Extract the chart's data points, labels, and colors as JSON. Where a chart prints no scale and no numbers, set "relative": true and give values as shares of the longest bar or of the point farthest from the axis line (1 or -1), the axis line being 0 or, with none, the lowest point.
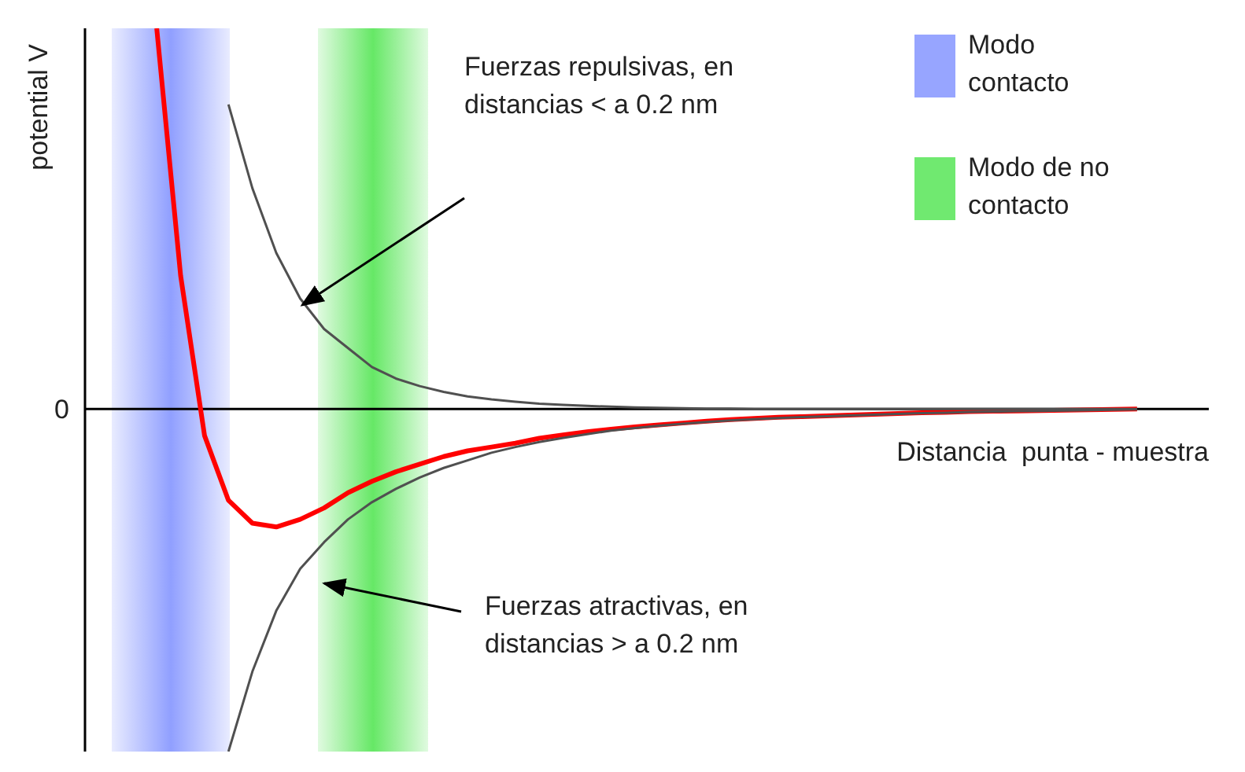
{
  "chart_data": {
    "type": "line",
    "relative": true,
    "xlabel": "Distancia  punta - muestra",
    "ylabel": "potential V",
    "categories": [
      null,
      null,
      null,
      null,
      null,
      null,
      null,
      null,
      null,
      null,
      null,
      null,
      null,
      null,
      null,
      null,
      null,
      null,
      null,
      null,
      null,
      null,
      null,
      null,
      null,
      null,
      null,
      null,
      null,
      null,
      null,
      null,
      null,
      null,
      null,
      null,
      null,
      null,
      null,
      null,
      null,
      null,
      null,
      null,
      null,
      null,
      null,
      null
    ],
    "series": [
      {
        "color": "#ff0000",
        "values": [
          null,
          null,
          null,
          1.0,
          0.35,
          -0.07,
          -0.24,
          -0.3,
          -0.31,
          -0.29,
          -0.26,
          -0.22,
          -0.19,
          -0.165,
          -0.145,
          -0.125,
          -0.11,
          -0.1,
          -0.09,
          -0.077,
          -0.068,
          -0.06,
          -0.053,
          -0.047,
          -0.042,
          -0.037,
          -0.032,
          -0.028,
          -0.025,
          -0.022,
          -0.02,
          -0.018,
          -0.016,
          -0.014,
          -0.012,
          -0.01,
          -0.009,
          -0.007,
          -0.006,
          -0.005,
          -0.004,
          -0.003,
          -0.002,
          -0.001,
          0,
          null,
          null,
          null
        ]
      },
      {
        "color": "#505050",
        "values": [
          null,
          null,
          null,
          null,
          null,
          null,
          0.8,
          0.58,
          0.41,
          0.29,
          0.21,
          0.16,
          0.11,
          0.08,
          0.06,
          0.045,
          0.033,
          0.025,
          0.019,
          0.014,
          0.011,
          0.008,
          0.006,
          0.004,
          0.003,
          0.002,
          0.001,
          0.001,
          0,
          0,
          0,
          0,
          0,
          0,
          0,
          0,
          0,
          0,
          0,
          0,
          0,
          0,
          0,
          0,
          0,
          null,
          null,
          null
        ]
      },
      {
        "color": "#505050",
        "values": [
          null,
          null,
          null,
          null,
          null,
          null,
          -0.9,
          -0.69,
          -0.53,
          -0.42,
          -0.35,
          -0.29,
          -0.245,
          -0.21,
          -0.18,
          -0.155,
          -0.135,
          -0.115,
          -0.1,
          -0.087,
          -0.076,
          -0.066,
          -0.057,
          -0.05,
          -0.044,
          -0.039,
          -0.034,
          -0.03,
          -0.027,
          -0.024,
          -0.021,
          -0.019,
          -0.017,
          -0.015,
          -0.013,
          -0.011,
          -0.01,
          -0.008,
          -0.007,
          -0.006,
          -0.005,
          -0.004,
          -0.003,
          -0.002,
          -0.001,
          null,
          null,
          null
        ]
      }
    ],
    "annotations": [
      "0",
      "Fuerzas repulsivas, en distancias < a 0.2 nm",
      "Fuerzas atractivas, en distancias > a 0.2 nm",
      "Modo contacto",
      "Modo de no contacto"
    ]
  }
}
